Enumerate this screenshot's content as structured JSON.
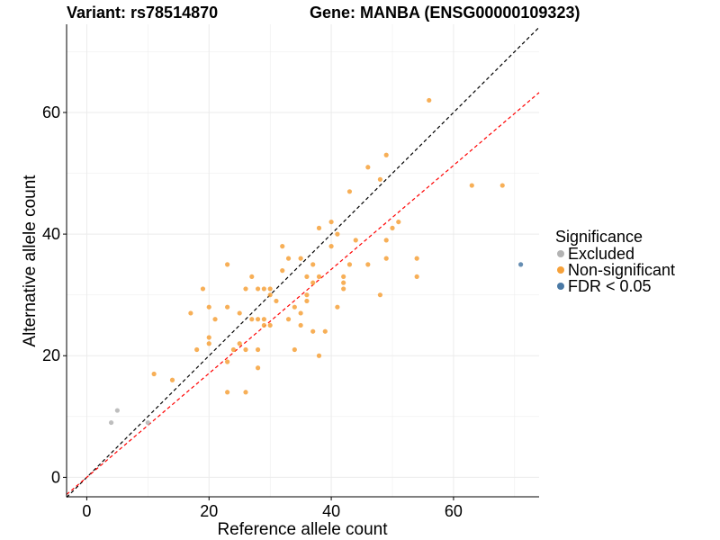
{
  "title_left": "Variant: rs78514870",
  "title_right": "Gene: MANBA (ENSG00000109323)",
  "legend": {
    "title": "Significance",
    "items": [
      {
        "label": "Excluded",
        "color": "#b3b3b3"
      },
      {
        "label": "Non-significant",
        "color": "#f6a13a"
      },
      {
        "label": "FDR < 0.05",
        "color": "#4a79a5"
      }
    ]
  },
  "chart_data": {
    "type": "scatter",
    "xlabel": "Reference allele count",
    "ylabel": "Alternative allele count",
    "xlim": [
      -3.3,
      74
    ],
    "ylim": [
      -3.2,
      74.5
    ],
    "x_ticks": [
      0,
      20,
      40,
      60
    ],
    "y_ticks": [
      0,
      20,
      40,
      60
    ],
    "grid": true,
    "legend_position": "right",
    "reference_lines": [
      {
        "name": "identity",
        "slope": 1.0,
        "color": "#000000",
        "dash": true
      },
      {
        "name": "fit",
        "slope": 0.855,
        "color": "#ff0000",
        "dash": true
      }
    ],
    "series": [
      {
        "group": "Excluded",
        "color": "#b3b3b3",
        "points": [
          [
            4,
            9
          ],
          [
            5,
            11
          ],
          [
            10,
            9
          ]
        ]
      },
      {
        "group": "FDR < 0.05",
        "color": "#4a79a5",
        "points": [
          [
            71,
            35
          ]
        ]
      },
      {
        "group": "Non-significant",
        "color": "#f6a13a",
        "points": [
          [
            11,
            17
          ],
          [
            14,
            16
          ],
          [
            17,
            27
          ],
          [
            18,
            21
          ],
          [
            19,
            31
          ],
          [
            20,
            28
          ],
          [
            20,
            23
          ],
          [
            20,
            22
          ],
          [
            21,
            26
          ],
          [
            23,
            35
          ],
          [
            23,
            28
          ],
          [
            23,
            19
          ],
          [
            23,
            14
          ],
          [
            24,
            21
          ],
          [
            25,
            27
          ],
          [
            25,
            22
          ],
          [
            26,
            31
          ],
          [
            26,
            21
          ],
          [
            26,
            14
          ],
          [
            27,
            33
          ],
          [
            27,
            26
          ],
          [
            28,
            31
          ],
          [
            28,
            26
          ],
          [
            28,
            21
          ],
          [
            28,
            18
          ],
          [
            29,
            31
          ],
          [
            29,
            26
          ],
          [
            29,
            25
          ],
          [
            30,
            31
          ],
          [
            30,
            30
          ],
          [
            30,
            25
          ],
          [
            31,
            29
          ],
          [
            32,
            38
          ],
          [
            32,
            34
          ],
          [
            33,
            36
          ],
          [
            33,
            26
          ],
          [
            34,
            28
          ],
          [
            34,
            21
          ],
          [
            35,
            36
          ],
          [
            35,
            27
          ],
          [
            35,
            25
          ],
          [
            36,
            33
          ],
          [
            36,
            30
          ],
          [
            36,
            29
          ],
          [
            37,
            35
          ],
          [
            37,
            32
          ],
          [
            37,
            24
          ],
          [
            38,
            41
          ],
          [
            38,
            33
          ],
          [
            38,
            20
          ],
          [
            39,
            24
          ],
          [
            40,
            42
          ],
          [
            40,
            38
          ],
          [
            41,
            40
          ],
          [
            41,
            28
          ],
          [
            42,
            33
          ],
          [
            42,
            32
          ],
          [
            42,
            31
          ],
          [
            43,
            47
          ],
          [
            43,
            35
          ],
          [
            44,
            39
          ],
          [
            46,
            51
          ],
          [
            46,
            35
          ],
          [
            48,
            49
          ],
          [
            48,
            30
          ],
          [
            49,
            53
          ],
          [
            49,
            39
          ],
          [
            49,
            36
          ],
          [
            50,
            41
          ],
          [
            51,
            42
          ],
          [
            54,
            36
          ],
          [
            54,
            33
          ],
          [
            56,
            62
          ],
          [
            63,
            48
          ],
          [
            68,
            48
          ]
        ]
      }
    ]
  }
}
